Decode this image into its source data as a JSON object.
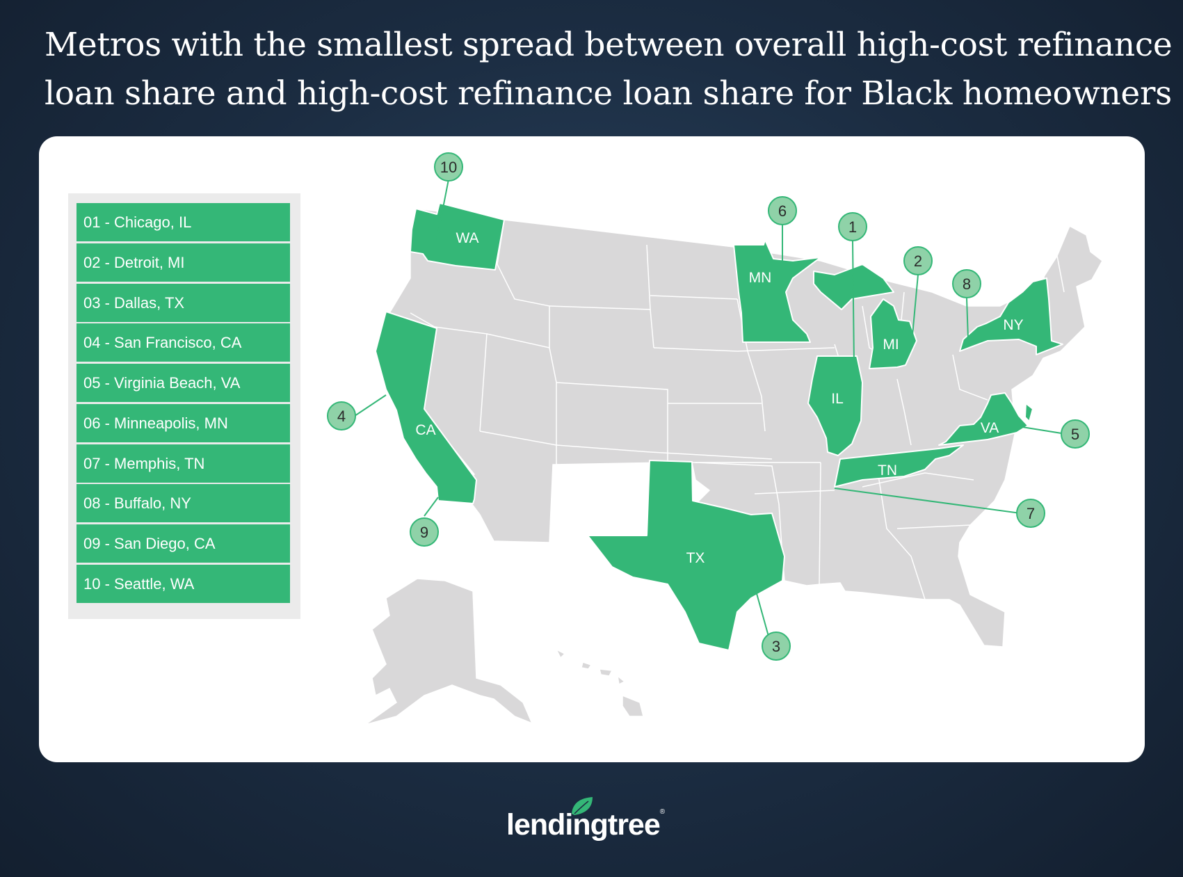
{
  "title": {
    "line1": "Metros with the smallest spread between overall high-cost refinance",
    "line2": "loan share and high-cost refinance loan share for Black homeowners"
  },
  "legend": [
    "01 - Chicago, IL",
    "02 - Detroit, MI",
    "03 - Dallas, TX",
    "04 - San Francisco, CA",
    "05 - Virginia Beach, VA",
    "06 - Minneapolis, MN",
    "07 - Memphis, TN",
    "08 - Buffalo, NY",
    "09 - San Diego, CA",
    "10 - Seattle, WA"
  ],
  "highlighted_states": [
    "WA",
    "CA",
    "MN",
    "IL",
    "MI",
    "NY",
    "TX",
    "VA",
    "TN"
  ],
  "markers": [
    "1",
    "2",
    "3",
    "4",
    "5",
    "6",
    "7",
    "8",
    "9",
    "10"
  ],
  "colors": {
    "highlight": "#34b777",
    "marker_fill": "#8fd2a8",
    "base_state": "#d9d8d9",
    "background": "#1b2c41"
  },
  "brand": {
    "name": "lendingtree",
    "reg": "®"
  }
}
